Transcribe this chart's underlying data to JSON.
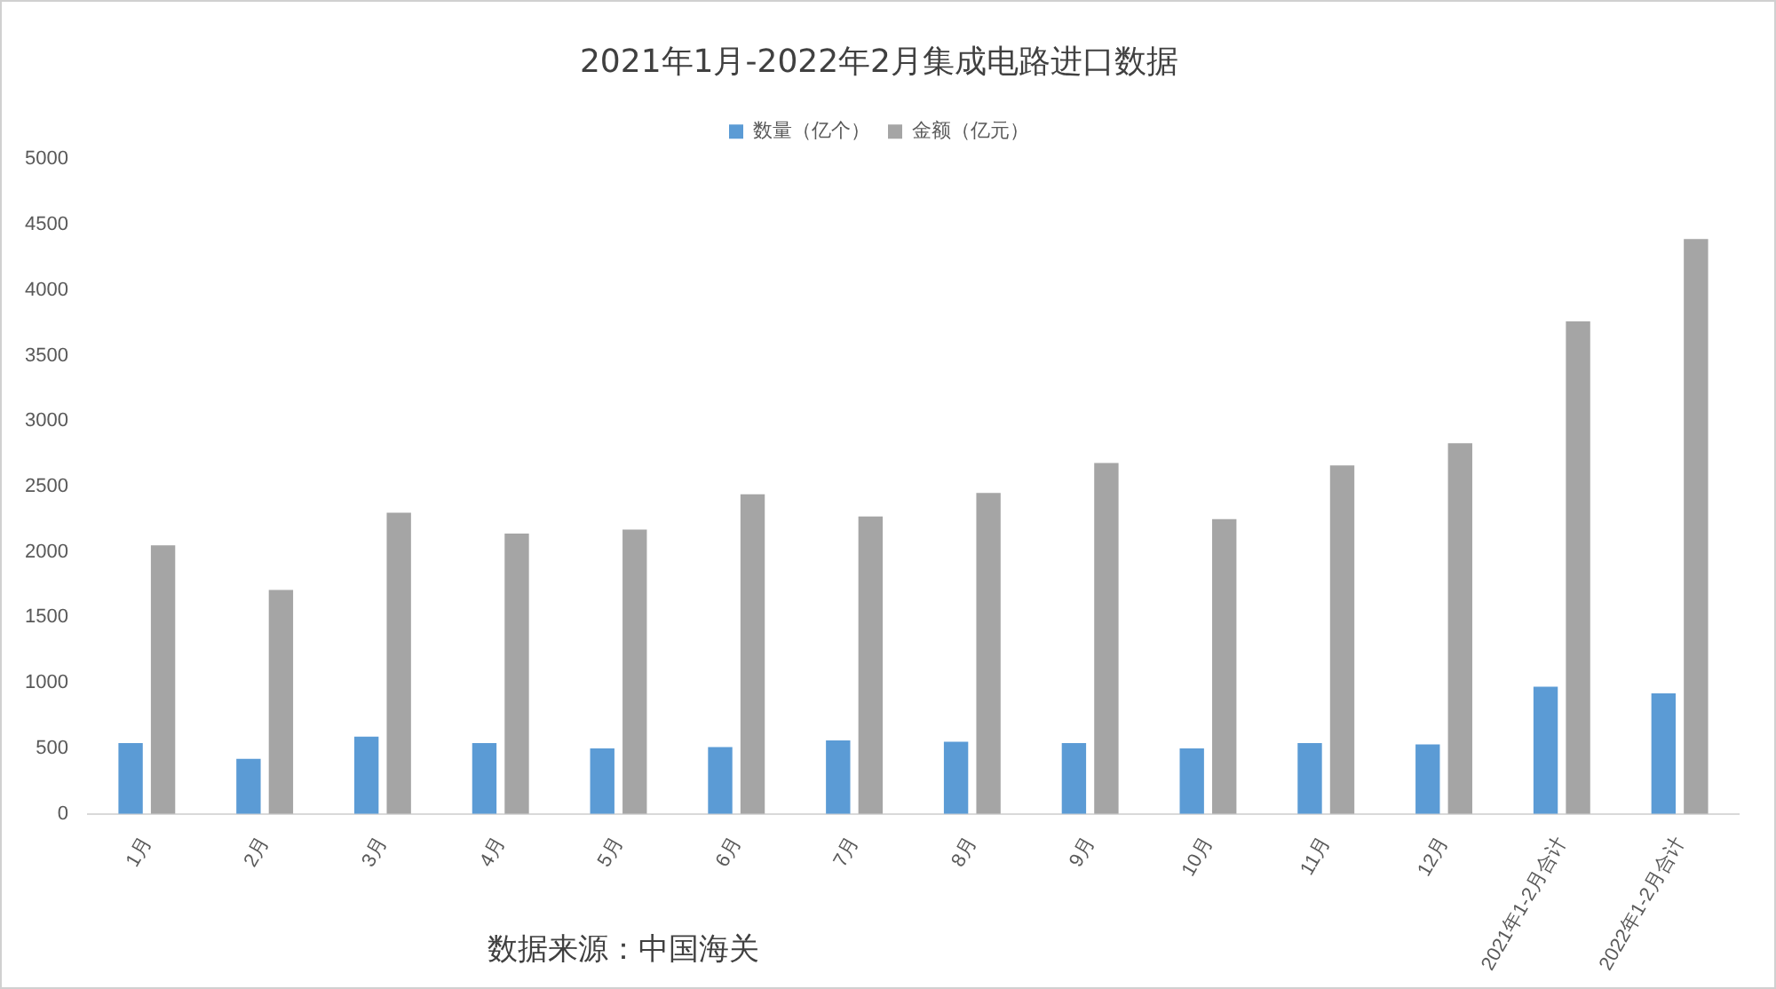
{
  "chart_data": {
    "type": "bar",
    "title": "2021年1月-2022年2月集成电路进口数据",
    "categories": [
      "1月",
      "2月",
      "3月",
      "4月",
      "5月",
      "6月",
      "7月",
      "8月",
      "9月",
      "10月",
      "11月",
      "12月",
      "2021年1-2月合计",
      "2022年1-2月合计"
    ],
    "series": [
      {
        "name": "数量（亿个）",
        "color": "#5b9bd5",
        "values": [
          540,
          420,
          590,
          540,
          500,
          510,
          560,
          550,
          540,
          500,
          540,
          530,
          970,
          920
        ]
      },
      {
        "name": "金额（亿元）",
        "color": "#a5a5a5",
        "values": [
          2050,
          1710,
          2300,
          2140,
          2170,
          2440,
          2270,
          2450,
          2680,
          2250,
          2660,
          2830,
          3760,
          4390
        ]
      }
    ],
    "ylim": [
      0,
      5000
    ],
    "yticks": [
      0,
      500,
      1000,
      1500,
      2000,
      2500,
      3000,
      3500,
      4000,
      4500,
      5000
    ],
    "grid": false,
    "legend": "top",
    "annotations": [
      "数据来源：中国海关"
    ]
  }
}
